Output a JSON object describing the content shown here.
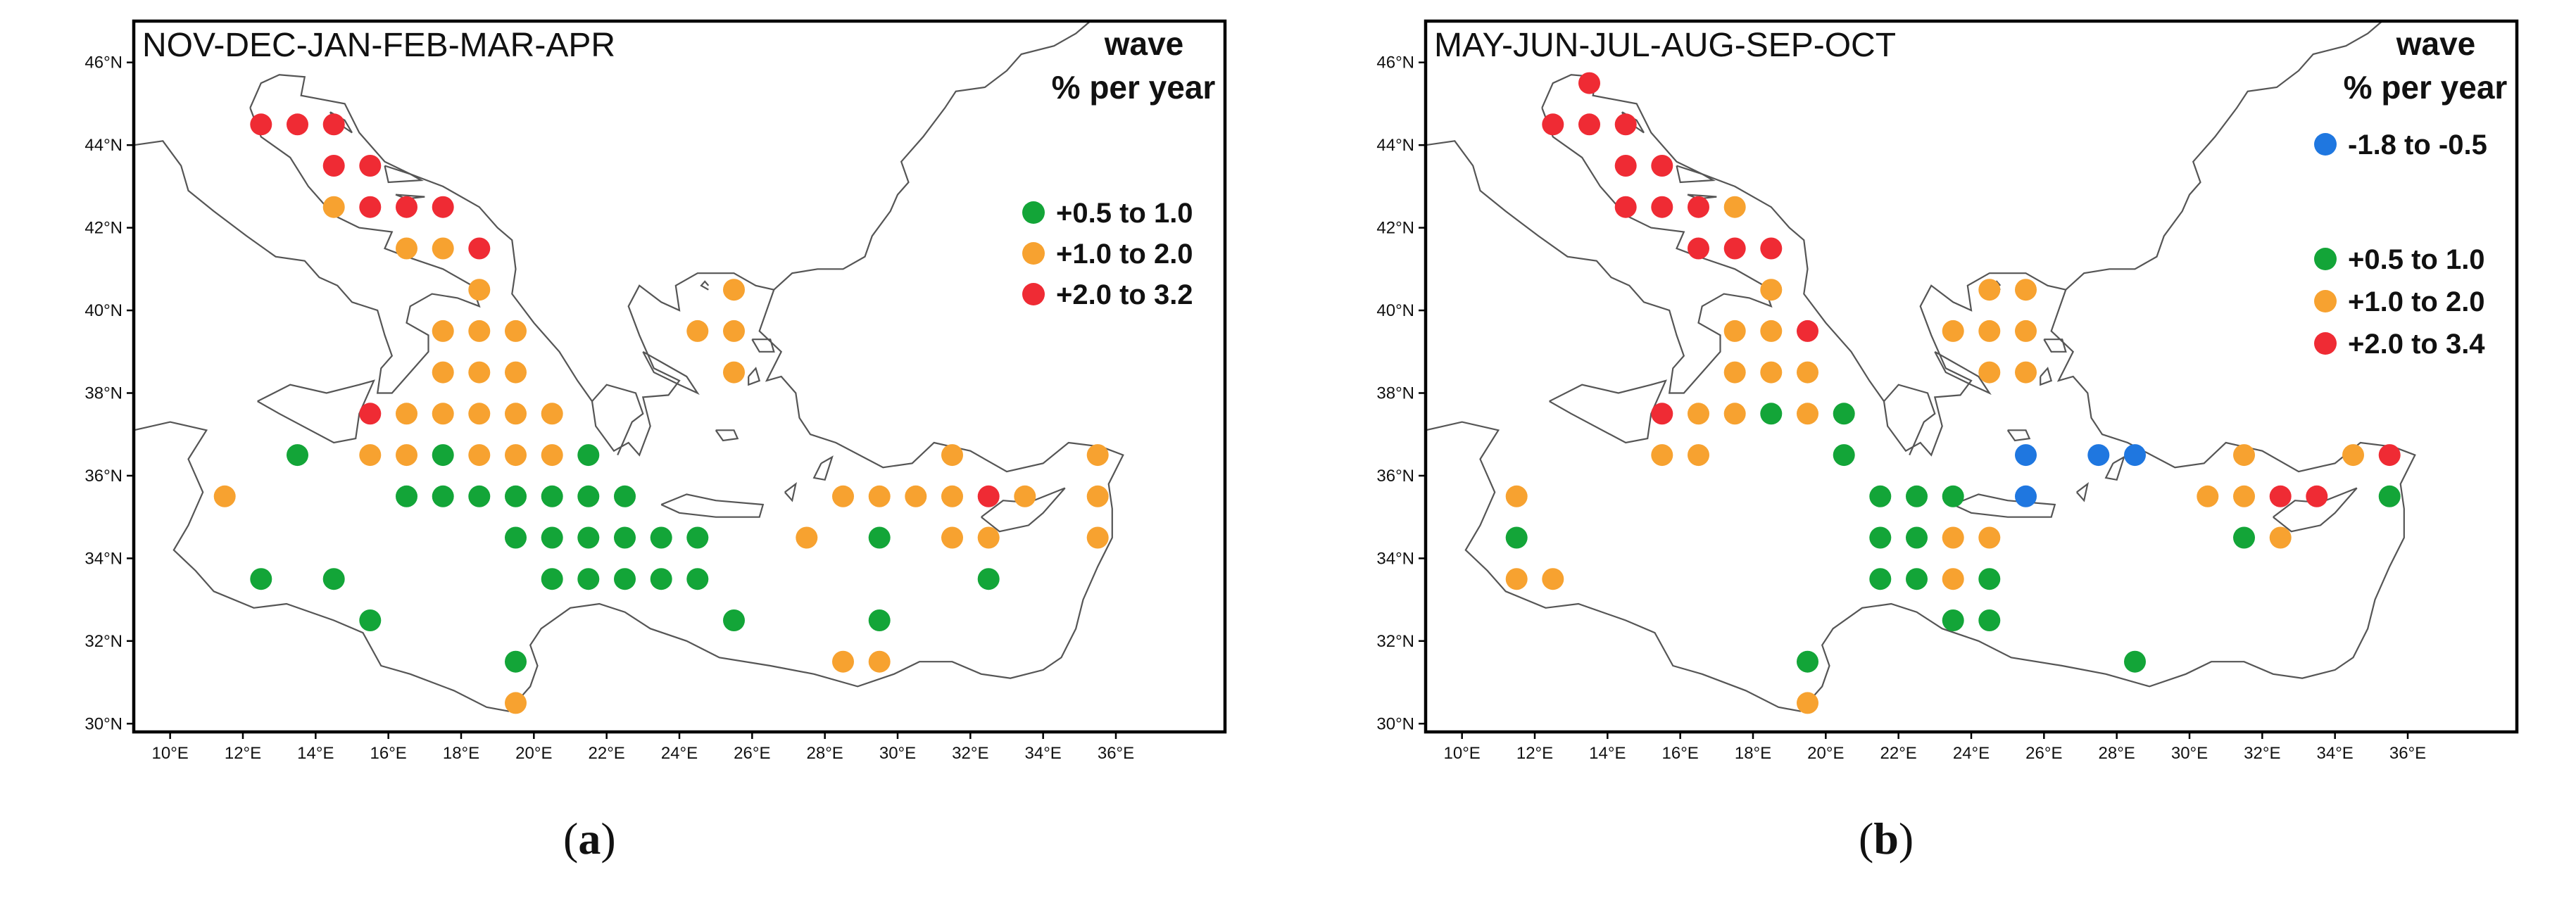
{
  "figure": {
    "panels": [
      {
        "id": "a",
        "label": "a",
        "title": "NOV-DEC-JAN-FEB-MAR-APR",
        "legend_title_line1": "wave",
        "legend_title_line2": "% per year",
        "legend": [
          {
            "label": "+0.5 to 1.0",
            "color": "#13a538",
            "category": "g"
          },
          {
            "label": "+1.0 to 2.0",
            "color": "#f7a230",
            "category": "o"
          },
          {
            "label": "+2.0 to 3.2",
            "color": "#ef2b34",
            "category": "r"
          }
        ],
        "lat_ticks": [
          "30°N",
          "32°N",
          "34°N",
          "36°N",
          "38°N",
          "40°N",
          "42°N",
          "44°N",
          "46°N"
        ],
        "lon_ticks": [
          "10°E",
          "12°E",
          "14°E",
          "16°E",
          "18°E",
          "20°E",
          "22°E",
          "24°E",
          "26°E",
          "28°E",
          "30°E",
          "32°E",
          "34°E",
          "36°E"
        ],
        "points": [
          {
            "lon": 12.5,
            "lat": 44.5,
            "c": "r"
          },
          {
            "lon": 13.5,
            "lat": 44.5,
            "c": "r"
          },
          {
            "lon": 14.5,
            "lat": 44.5,
            "c": "r"
          },
          {
            "lon": 14.5,
            "lat": 43.5,
            "c": "r"
          },
          {
            "lon": 15.5,
            "lat": 43.5,
            "c": "r"
          },
          {
            "lon": 14.5,
            "lat": 42.5,
            "c": "o"
          },
          {
            "lon": 15.5,
            "lat": 42.5,
            "c": "r"
          },
          {
            "lon": 16.5,
            "lat": 42.5,
            "c": "r"
          },
          {
            "lon": 17.5,
            "lat": 42.5,
            "c": "r"
          },
          {
            "lon": 16.5,
            "lat": 41.5,
            "c": "o"
          },
          {
            "lon": 17.5,
            "lat": 41.5,
            "c": "o"
          },
          {
            "lon": 18.5,
            "lat": 41.5,
            "c": "r"
          },
          {
            "lon": 18.5,
            "lat": 40.5,
            "c": "o"
          },
          {
            "lon": 17.5,
            "lat": 39.5,
            "c": "o"
          },
          {
            "lon": 18.5,
            "lat": 39.5,
            "c": "o"
          },
          {
            "lon": 19.5,
            "lat": 39.5,
            "c": "o"
          },
          {
            "lon": 17.5,
            "lat": 38.5,
            "c": "o"
          },
          {
            "lon": 18.5,
            "lat": 38.5,
            "c": "o"
          },
          {
            "lon": 19.5,
            "lat": 38.5,
            "c": "o"
          },
          {
            "lon": 15.5,
            "lat": 37.5,
            "c": "r"
          },
          {
            "lon": 16.5,
            "lat": 37.5,
            "c": "o"
          },
          {
            "lon": 17.5,
            "lat": 37.5,
            "c": "o"
          },
          {
            "lon": 18.5,
            "lat": 37.5,
            "c": "o"
          },
          {
            "lon": 19.5,
            "lat": 37.5,
            "c": "o"
          },
          {
            "lon": 20.5,
            "lat": 37.5,
            "c": "o"
          },
          {
            "lon": 13.5,
            "lat": 36.5,
            "c": "g"
          },
          {
            "lon": 15.5,
            "lat": 36.5,
            "c": "o"
          },
          {
            "lon": 16.5,
            "lat": 36.5,
            "c": "o"
          },
          {
            "lon": 17.5,
            "lat": 36.5,
            "c": "g"
          },
          {
            "lon": 18.5,
            "lat": 36.5,
            "c": "o"
          },
          {
            "lon": 19.5,
            "lat": 36.5,
            "c": "o"
          },
          {
            "lon": 20.5,
            "lat": 36.5,
            "c": "o"
          },
          {
            "lon": 21.5,
            "lat": 36.5,
            "c": "g"
          },
          {
            "lon": 11.5,
            "lat": 35.5,
            "c": "o"
          },
          {
            "lon": 16.5,
            "lat": 35.5,
            "c": "g"
          },
          {
            "lon": 17.5,
            "lat": 35.5,
            "c": "g"
          },
          {
            "lon": 18.5,
            "lat": 35.5,
            "c": "g"
          },
          {
            "lon": 19.5,
            "lat": 35.5,
            "c": "g"
          },
          {
            "lon": 20.5,
            "lat": 35.5,
            "c": "g"
          },
          {
            "lon": 21.5,
            "lat": 35.5,
            "c": "g"
          },
          {
            "lon": 22.5,
            "lat": 35.5,
            "c": "g"
          },
          {
            "lon": 19.5,
            "lat": 34.5,
            "c": "g"
          },
          {
            "lon": 20.5,
            "lat": 34.5,
            "c": "g"
          },
          {
            "lon": 21.5,
            "lat": 34.5,
            "c": "g"
          },
          {
            "lon": 22.5,
            "lat": 34.5,
            "c": "g"
          },
          {
            "lon": 23.5,
            "lat": 34.5,
            "c": "g"
          },
          {
            "lon": 24.5,
            "lat": 34.5,
            "c": "g"
          },
          {
            "lon": 12.5,
            "lat": 33.5,
            "c": "g"
          },
          {
            "lon": 14.5,
            "lat": 33.5,
            "c": "g"
          },
          {
            "lon": 20.5,
            "lat": 33.5,
            "c": "g"
          },
          {
            "lon": 21.5,
            "lat": 33.5,
            "c": "g"
          },
          {
            "lon": 22.5,
            "lat": 33.5,
            "c": "g"
          },
          {
            "lon": 23.5,
            "lat": 33.5,
            "c": "g"
          },
          {
            "lon": 24.5,
            "lat": 33.5,
            "c": "g"
          },
          {
            "lon": 15.5,
            "lat": 32.5,
            "c": "g"
          },
          {
            "lon": 25.5,
            "lat": 32.5,
            "c": "g"
          },
          {
            "lon": 19.5,
            "lat": 31.5,
            "c": "g"
          },
          {
            "lon": 19.5,
            "lat": 30.5,
            "c": "o"
          },
          {
            "lon": 25.5,
            "lat": 40.5,
            "c": "o"
          },
          {
            "lon": 24.5,
            "lat": 39.5,
            "c": "o"
          },
          {
            "lon": 25.5,
            "lat": 39.5,
            "c": "o"
          },
          {
            "lon": 25.5,
            "lat": 38.5,
            "c": "o"
          },
          {
            "lon": 31.5,
            "lat": 36.5,
            "c": "o"
          },
          {
            "lon": 35.5,
            "lat": 36.5,
            "c": "o"
          },
          {
            "lon": 28.5,
            "lat": 35.5,
            "c": "o"
          },
          {
            "lon": 29.5,
            "lat": 35.5,
            "c": "o"
          },
          {
            "lon": 30.5,
            "lat": 35.5,
            "c": "o"
          },
          {
            "lon": 31.5,
            "lat": 35.5,
            "c": "o"
          },
          {
            "lon": 32.5,
            "lat": 35.5,
            "c": "r"
          },
          {
            "lon": 33.5,
            "lat": 35.5,
            "c": "o"
          },
          {
            "lon": 35.5,
            "lat": 35.5,
            "c": "o"
          },
          {
            "lon": 27.5,
            "lat": 34.5,
            "c": "o"
          },
          {
            "lon": 29.5,
            "lat": 34.5,
            "c": "g"
          },
          {
            "lon": 31.5,
            "lat": 34.5,
            "c": "o"
          },
          {
            "lon": 32.5,
            "lat": 34.5,
            "c": "o"
          },
          {
            "lon": 35.5,
            "lat": 34.5,
            "c": "o"
          },
          {
            "lon": 32.5,
            "lat": 33.5,
            "c": "g"
          },
          {
            "lon": 29.5,
            "lat": 32.5,
            "c": "g"
          },
          {
            "lon": 28.5,
            "lat": 31.5,
            "c": "o"
          },
          {
            "lon": 29.5,
            "lat": 31.5,
            "c": "o"
          }
        ]
      },
      {
        "id": "b",
        "label": "b",
        "title": "MAY-JUN-JUL-AUG-SEP-OCT",
        "legend_title_line1": "wave",
        "legend_title_line2": "% per year",
        "legend": [
          {
            "label": "-1.8 to -0.5",
            "color": "#1f77e0",
            "category": "b"
          },
          {
            "label": "+0.5 to 1.0",
            "color": "#13a538",
            "category": "g"
          },
          {
            "label": "+1.0 to 2.0",
            "color": "#f7a230",
            "category": "o"
          },
          {
            "label": "+2.0 to 3.4",
            "color": "#ef2b34",
            "category": "r"
          }
        ],
        "lat_ticks": [
          "30°N",
          "32°N",
          "34°N",
          "36°N",
          "38°N",
          "40°N",
          "42°N",
          "44°N",
          "46°N"
        ],
        "lon_ticks": [
          "10°E",
          "12°E",
          "14°E",
          "16°E",
          "18°E",
          "20°E",
          "22°E",
          "24°E",
          "26°E",
          "28°E",
          "30°E",
          "32°E",
          "34°E",
          "36°E"
        ],
        "points": [
          {
            "lon": 13.5,
            "lat": 45.5,
            "c": "r"
          },
          {
            "lon": 12.5,
            "lat": 44.5,
            "c": "r"
          },
          {
            "lon": 13.5,
            "lat": 44.5,
            "c": "r"
          },
          {
            "lon": 14.5,
            "lat": 44.5,
            "c": "r"
          },
          {
            "lon": 14.5,
            "lat": 43.5,
            "c": "r"
          },
          {
            "lon": 15.5,
            "lat": 43.5,
            "c": "r"
          },
          {
            "lon": 14.5,
            "lat": 42.5,
            "c": "r"
          },
          {
            "lon": 15.5,
            "lat": 42.5,
            "c": "r"
          },
          {
            "lon": 16.5,
            "lat": 42.5,
            "c": "r"
          },
          {
            "lon": 17.5,
            "lat": 42.5,
            "c": "o"
          },
          {
            "lon": 16.5,
            "lat": 41.5,
            "c": "r"
          },
          {
            "lon": 17.5,
            "lat": 41.5,
            "c": "r"
          },
          {
            "lon": 18.5,
            "lat": 41.5,
            "c": "r"
          },
          {
            "lon": 18.5,
            "lat": 40.5,
            "c": "o"
          },
          {
            "lon": 17.5,
            "lat": 39.5,
            "c": "o"
          },
          {
            "lon": 18.5,
            "lat": 39.5,
            "c": "o"
          },
          {
            "lon": 19.5,
            "lat": 39.5,
            "c": "r"
          },
          {
            "lon": 17.5,
            "lat": 38.5,
            "c": "o"
          },
          {
            "lon": 18.5,
            "lat": 38.5,
            "c": "o"
          },
          {
            "lon": 19.5,
            "lat": 38.5,
            "c": "o"
          },
          {
            "lon": 15.5,
            "lat": 37.5,
            "c": "r"
          },
          {
            "lon": 16.5,
            "lat": 37.5,
            "c": "o"
          },
          {
            "lon": 17.5,
            "lat": 37.5,
            "c": "o"
          },
          {
            "lon": 18.5,
            "lat": 37.5,
            "c": "g"
          },
          {
            "lon": 19.5,
            "lat": 37.5,
            "c": "o"
          },
          {
            "lon": 20.5,
            "lat": 37.5,
            "c": "g"
          },
          {
            "lon": 15.5,
            "lat": 36.5,
            "c": "o"
          },
          {
            "lon": 16.5,
            "lat": 36.5,
            "c": "o"
          },
          {
            "lon": 20.5,
            "lat": 36.5,
            "c": "g"
          },
          {
            "lon": 11.5,
            "lat": 35.5,
            "c": "o"
          },
          {
            "lon": 21.5,
            "lat": 35.5,
            "c": "g"
          },
          {
            "lon": 22.5,
            "lat": 35.5,
            "c": "g"
          },
          {
            "lon": 23.5,
            "lat": 35.5,
            "c": "g"
          },
          {
            "lon": 11.5,
            "lat": 34.5,
            "c": "g"
          },
          {
            "lon": 21.5,
            "lat": 34.5,
            "c": "g"
          },
          {
            "lon": 22.5,
            "lat": 34.5,
            "c": "g"
          },
          {
            "lon": 23.5,
            "lat": 34.5,
            "c": "o"
          },
          {
            "lon": 24.5,
            "lat": 34.5,
            "c": "o"
          },
          {
            "lon": 11.5,
            "lat": 33.5,
            "c": "o"
          },
          {
            "lon": 12.5,
            "lat": 33.5,
            "c": "o"
          },
          {
            "lon": 21.5,
            "lat": 33.5,
            "c": "g"
          },
          {
            "lon": 22.5,
            "lat": 33.5,
            "c": "g"
          },
          {
            "lon": 23.5,
            "lat": 33.5,
            "c": "o"
          },
          {
            "lon": 24.5,
            "lat": 33.5,
            "c": "g"
          },
          {
            "lon": 23.5,
            "lat": 32.5,
            "c": "g"
          },
          {
            "lon": 24.5,
            "lat": 32.5,
            "c": "g"
          },
          {
            "lon": 19.5,
            "lat": 31.5,
            "c": "g"
          },
          {
            "lon": 19.5,
            "lat": 30.5,
            "c": "o"
          },
          {
            "lon": 24.5,
            "lat": 40.5,
            "c": "o"
          },
          {
            "lon": 25.5,
            "lat": 40.5,
            "c": "o"
          },
          {
            "lon": 23.5,
            "lat": 39.5,
            "c": "o"
          },
          {
            "lon": 24.5,
            "lat": 39.5,
            "c": "o"
          },
          {
            "lon": 25.5,
            "lat": 39.5,
            "c": "o"
          },
          {
            "lon": 24.5,
            "lat": 38.5,
            "c": "o"
          },
          {
            "lon": 25.5,
            "lat": 38.5,
            "c": "o"
          },
          {
            "lon": 25.5,
            "lat": 36.5,
            "c": "b"
          },
          {
            "lon": 27.5,
            "lat": 36.5,
            "c": "b"
          },
          {
            "lon": 28.5,
            "lat": 36.5,
            "c": "b"
          },
          {
            "lon": 25.5,
            "lat": 35.5,
            "c": "b"
          },
          {
            "lon": 31.5,
            "lat": 36.5,
            "c": "o"
          },
          {
            "lon": 34.5,
            "lat": 36.5,
            "c": "o"
          },
          {
            "lon": 35.5,
            "lat": 36.5,
            "c": "r"
          },
          {
            "lon": 30.5,
            "lat": 35.5,
            "c": "o"
          },
          {
            "lon": 31.5,
            "lat": 35.5,
            "c": "o"
          },
          {
            "lon": 32.5,
            "lat": 35.5,
            "c": "r"
          },
          {
            "lon": 33.5,
            "lat": 35.5,
            "c": "r"
          },
          {
            "lon": 35.5,
            "lat": 35.5,
            "c": "g"
          },
          {
            "lon": 31.5,
            "lat": 34.5,
            "c": "g"
          },
          {
            "lon": 32.5,
            "lat": 34.5,
            "c": "o"
          },
          {
            "lon": 28.5,
            "lat": 31.5,
            "c": "g"
          }
        ]
      }
    ]
  }
}
